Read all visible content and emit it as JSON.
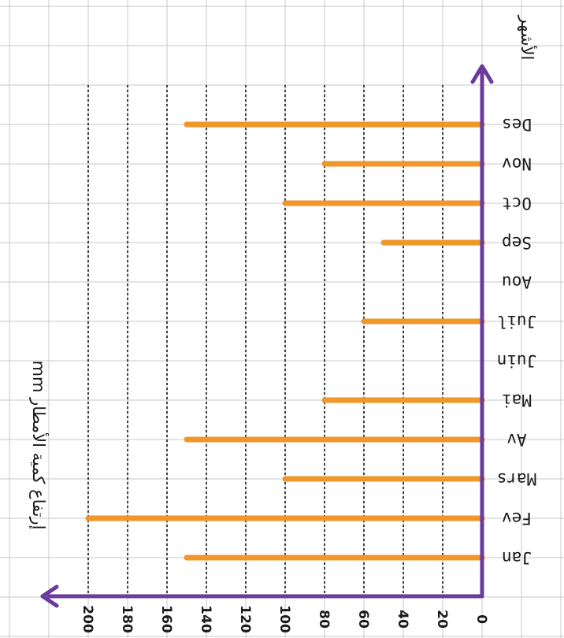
{
  "chart_data": {
    "type": "bar",
    "orientation": "horizontal",
    "categories": [
      "Jan",
      "Fev",
      "Mars",
      "Av",
      "Mai",
      "Juin",
      "Juil",
      "Aou",
      "Sep",
      "Oct",
      "Nov",
      "Des"
    ],
    "values": [
      150,
      200,
      100,
      150,
      80,
      0,
      60,
      0,
      50,
      100,
      80,
      150
    ],
    "xlim": [
      0,
      200
    ],
    "x_ticks": [
      "0",
      "20",
      "40",
      "60",
      "80",
      "100",
      "120",
      "140",
      "160",
      "180",
      "200"
    ],
    "xlabel": "إرتفاع كمية الأمطار mm",
    "ylabel": "الأشهر",
    "grid": true,
    "bar_color": "#f0962a",
    "axis_color": "#6a3a9c"
  }
}
